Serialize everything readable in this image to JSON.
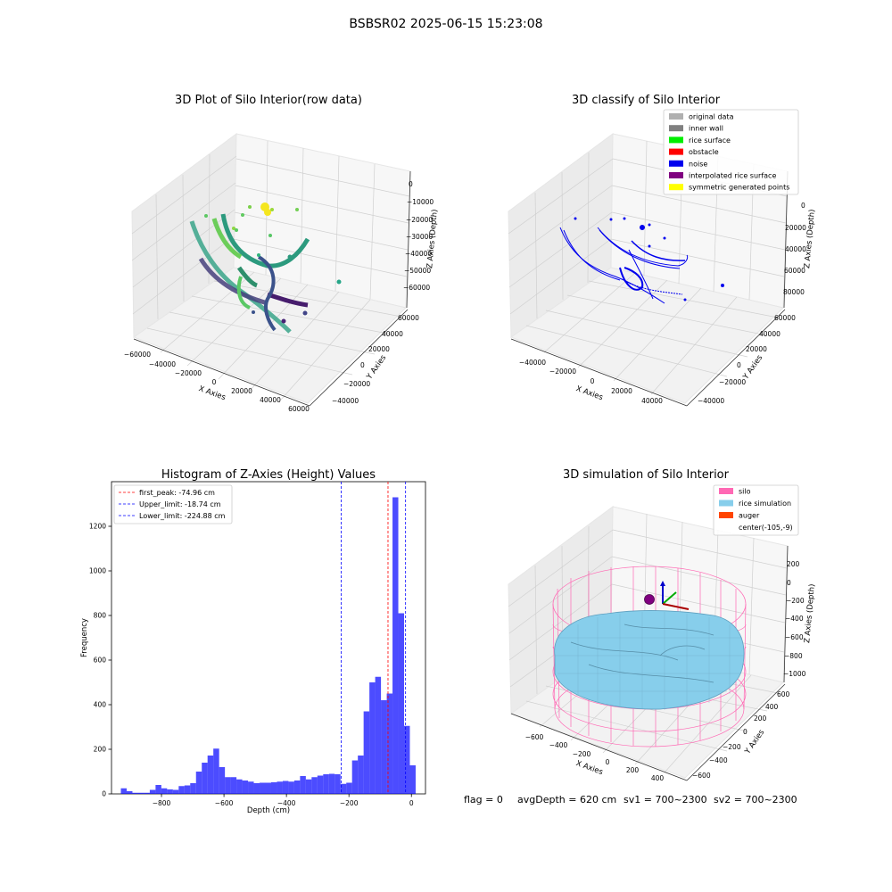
{
  "figure": {
    "suptitle": "BSBSR02 2025-06-15 15:23:08",
    "status_line": {
      "flag": "flag = 0",
      "avg_depth": "avgDepth = 620 cm",
      "sv1": "sv1 = 700~2300",
      "sv2": "sv2 = 700~2300"
    }
  },
  "chart_data": [
    {
      "id": "raw",
      "type": "scatter",
      "projection": "3d",
      "title": "3D Plot of Silo Interior(row data)",
      "xlabel": "X Axies",
      "ylabel": "Y Axies",
      "zlabel": "Z Axies (Depth)",
      "x_ticks": [
        "−60000",
        "−40000",
        "−20000",
        "0",
        "20000",
        "40000",
        "60000"
      ],
      "y_ticks": [
        "−40000",
        "−20000",
        "0",
        "20000",
        "40000",
        "60000"
      ],
      "z_ticks": [
        "0",
        "−10000",
        "−20000",
        "−30000",
        "−40000",
        "−50000",
        "−60000"
      ],
      "colormap": "viridis"
    },
    {
      "id": "classify",
      "type": "scatter",
      "projection": "3d",
      "title": "3D classify of Silo Interior",
      "xlabel": "X Axies",
      "ylabel": "Y Axies",
      "zlabel": "Z Axies (Depth)",
      "x_ticks": [
        "−40000",
        "−20000",
        "0",
        "20000",
        "40000"
      ],
      "y_ticks": [
        "−40000",
        "−20000",
        "0",
        "20000",
        "40000",
        "60000"
      ],
      "z_ticks": [
        "0",
        "20000",
        "40000",
        "60000",
        "80000"
      ],
      "legend_position": "upper right",
      "legend": [
        {
          "label": "original data",
          "color": "#b0b0b0"
        },
        {
          "label": "inner wall",
          "color": "#808080"
        },
        {
          "label": "rice surface",
          "color": "#00ee00"
        },
        {
          "label": "obstacle",
          "color": "#ff0000"
        },
        {
          "label": "noise",
          "color": "#0000ee"
        },
        {
          "label": "interpolated rice surface",
          "color": "#800080"
        },
        {
          "label": "symmetric generated points",
          "color": "#ffff00"
        }
      ]
    },
    {
      "id": "histogram",
      "type": "bar",
      "title": "Histogram of Z-Axies (Height) Values",
      "xlabel": "Depth (cm)",
      "ylabel": "Frequency",
      "xlim": [
        -960,
        45
      ],
      "ylim": [
        0,
        1400
      ],
      "x_ticks": [
        -800,
        -600,
        -400,
        -200,
        0
      ],
      "x_tick_labels": [
        "−800",
        "−600",
        "−400",
        "−200",
        "0"
      ],
      "y_ticks": [
        0,
        200,
        400,
        600,
        800,
        1000,
        1200
      ],
      "bar_color": "#0000ff",
      "bin_width": 18.5,
      "bin_edges_start": -930,
      "values": [
        25,
        12,
        5,
        5,
        5,
        18,
        40,
        25,
        20,
        18,
        35,
        38,
        48,
        100,
        140,
        172,
        203,
        120,
        75,
        75,
        65,
        60,
        55,
        48,
        50,
        50,
        52,
        55,
        58,
        55,
        60,
        80,
        65,
        75,
        82,
        88,
        90,
        88,
        45,
        50,
        150,
        172,
        370,
        500,
        525,
        420,
        450,
        1330,
        810,
        305,
        128
      ],
      "lines": [
        {
          "label": "first_peak: -74.96 cm",
          "x": -74.96,
          "color": "#ff0000"
        },
        {
          "label": "Upper_limit: -18.74 cm",
          "x": -18.74,
          "color": "#0000ff"
        },
        {
          "label": "Lower_limit: -224.88 cm",
          "x": -224.88,
          "color": "#0000ff"
        }
      ],
      "legend_position": "upper left"
    },
    {
      "id": "simulation",
      "type": "surface",
      "projection": "3d",
      "title": "3D simulation of Silo Interior",
      "xlabel": "X Axies",
      "ylabel": "Y Axies",
      "zlabel": "Z Axies (Depth)",
      "x_ticks": [
        "−600",
        "−400",
        "−200",
        "0",
        "200",
        "400"
      ],
      "y_ticks": [
        "−600",
        "−400",
        "−200",
        "0",
        "200",
        "400",
        "600"
      ],
      "z_ticks": [
        "200",
        "0",
        "−200",
        "−400",
        "−600",
        "−800",
        "−1000"
      ],
      "legend_position": "upper right",
      "legend": [
        {
          "label": "silo",
          "color": "#ff69b4"
        },
        {
          "label": "rice simulation",
          "color": "#87ceeb"
        },
        {
          "label": "auger",
          "color": "#ff4500"
        },
        {
          "label": "center(-105,-9)",
          "color": "none"
        }
      ]
    }
  ]
}
